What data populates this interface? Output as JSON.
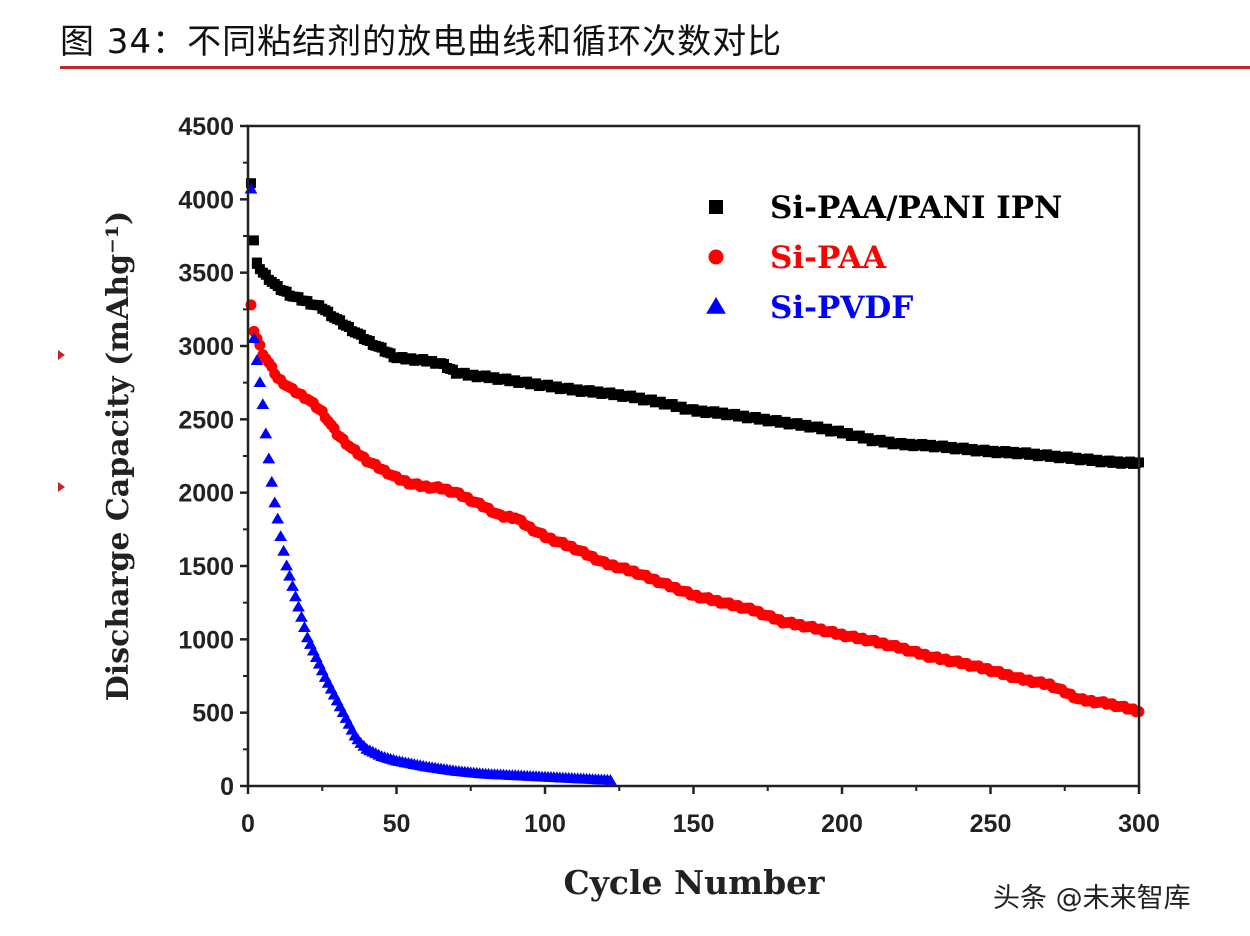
{
  "figure": {
    "caption": "图 34：不同粘结剂的放电曲线和循环次数对比",
    "watermark": "头条 @未来智库",
    "rule_color": "#c0272d"
  },
  "chart_data": {
    "type": "scatter",
    "xlabel": "Cycle Number",
    "ylabel": "Discharge Capacity (mAhg⁻¹)",
    "xlim": [
      0,
      300
    ],
    "ylim": [
      0,
      4500
    ],
    "x_ticks": [
      0,
      50,
      100,
      150,
      200,
      250,
      300
    ],
    "y_ticks": [
      0,
      500,
      1000,
      1500,
      2000,
      2500,
      3000,
      3500,
      4000,
      4500
    ],
    "grid": false,
    "legend_position": "top-right",
    "series": [
      {
        "name": "Si-PAA/PANI IPN",
        "color": "#000000",
        "marker": "square",
        "points": [
          [
            1,
            4110
          ],
          [
            2,
            3720
          ],
          [
            3,
            3560
          ],
          [
            5,
            3500
          ],
          [
            10,
            3400
          ],
          [
            15,
            3340
          ],
          [
            20,
            3300
          ],
          [
            25,
            3260
          ],
          [
            30,
            3180
          ],
          [
            35,
            3110
          ],
          [
            40,
            3040
          ],
          [
            45,
            2980
          ],
          [
            50,
            2920
          ],
          [
            55,
            2910
          ],
          [
            60,
            2900
          ],
          [
            65,
            2880
          ],
          [
            70,
            2820
          ],
          [
            75,
            2800
          ],
          [
            80,
            2790
          ],
          [
            90,
            2760
          ],
          [
            100,
            2730
          ],
          [
            110,
            2700
          ],
          [
            120,
            2680
          ],
          [
            130,
            2650
          ],
          [
            140,
            2610
          ],
          [
            150,
            2560
          ],
          [
            160,
            2540
          ],
          [
            170,
            2510
          ],
          [
            180,
            2480
          ],
          [
            190,
            2450
          ],
          [
            200,
            2410
          ],
          [
            210,
            2360
          ],
          [
            220,
            2330
          ],
          [
            230,
            2320
          ],
          [
            240,
            2300
          ],
          [
            250,
            2280
          ],
          [
            260,
            2270
          ],
          [
            270,
            2250
          ],
          [
            280,
            2230
          ],
          [
            290,
            2210
          ],
          [
            300,
            2200
          ]
        ]
      },
      {
        "name": "Si-PAA",
        "color": "#ff0000",
        "marker": "circle",
        "points": [
          [
            1,
            3280
          ],
          [
            2,
            3100
          ],
          [
            3,
            3050
          ],
          [
            5,
            2950
          ],
          [
            8,
            2850
          ],
          [
            10,
            2780
          ],
          [
            15,
            2700
          ],
          [
            20,
            2640
          ],
          [
            25,
            2550
          ],
          [
            30,
            2400
          ],
          [
            35,
            2300
          ],
          [
            40,
            2220
          ],
          [
            45,
            2160
          ],
          [
            50,
            2100
          ],
          [
            55,
            2060
          ],
          [
            60,
            2040
          ],
          [
            65,
            2030
          ],
          [
            70,
            2000
          ],
          [
            75,
            1950
          ],
          [
            80,
            1900
          ],
          [
            85,
            1840
          ],
          [
            90,
            1830
          ],
          [
            95,
            1760
          ],
          [
            100,
            1700
          ],
          [
            110,
            1620
          ],
          [
            120,
            1520
          ],
          [
            130,
            1460
          ],
          [
            140,
            1380
          ],
          [
            150,
            1300
          ],
          [
            160,
            1250
          ],
          [
            170,
            1200
          ],
          [
            180,
            1120
          ],
          [
            190,
            1080
          ],
          [
            200,
            1030
          ],
          [
            210,
            990
          ],
          [
            220,
            940
          ],
          [
            230,
            880
          ],
          [
            240,
            840
          ],
          [
            250,
            790
          ],
          [
            260,
            730
          ],
          [
            270,
            690
          ],
          [
            280,
            590
          ],
          [
            290,
            560
          ],
          [
            300,
            510
          ]
        ]
      },
      {
        "name": "Si-PVDF",
        "color": "#0000ff",
        "marker": "triangle",
        "points": [
          [
            1,
            4070
          ],
          [
            2,
            3050
          ],
          [
            4,
            2750
          ],
          [
            5,
            2600
          ],
          [
            6,
            2400
          ],
          [
            7,
            2230
          ],
          [
            8,
            2070
          ],
          [
            9,
            1930
          ],
          [
            10,
            1820
          ],
          [
            11,
            1700
          ],
          [
            12,
            1600
          ],
          [
            13,
            1500
          ],
          [
            14,
            1430
          ],
          [
            15,
            1360
          ],
          [
            16,
            1290
          ],
          [
            17,
            1220
          ],
          [
            18,
            1150
          ],
          [
            19,
            1080
          ],
          [
            20,
            1010
          ],
          [
            22,
            920
          ],
          [
            24,
            830
          ],
          [
            26,
            740
          ],
          [
            28,
            660
          ],
          [
            30,
            580
          ],
          [
            32,
            500
          ],
          [
            34,
            420
          ],
          [
            36,
            340
          ],
          [
            38,
            290
          ],
          [
            40,
            250
          ],
          [
            45,
            200
          ],
          [
            50,
            170
          ],
          [
            55,
            150
          ],
          [
            60,
            130
          ],
          [
            65,
            115
          ],
          [
            70,
            100
          ],
          [
            75,
            90
          ],
          [
            80,
            80
          ],
          [
            85,
            75
          ],
          [
            90,
            70
          ],
          [
            95,
            65
          ],
          [
            100,
            60
          ],
          [
            105,
            55
          ],
          [
            110,
            50
          ],
          [
            115,
            45
          ],
          [
            120,
            40
          ],
          [
            122,
            38
          ]
        ]
      }
    ]
  }
}
